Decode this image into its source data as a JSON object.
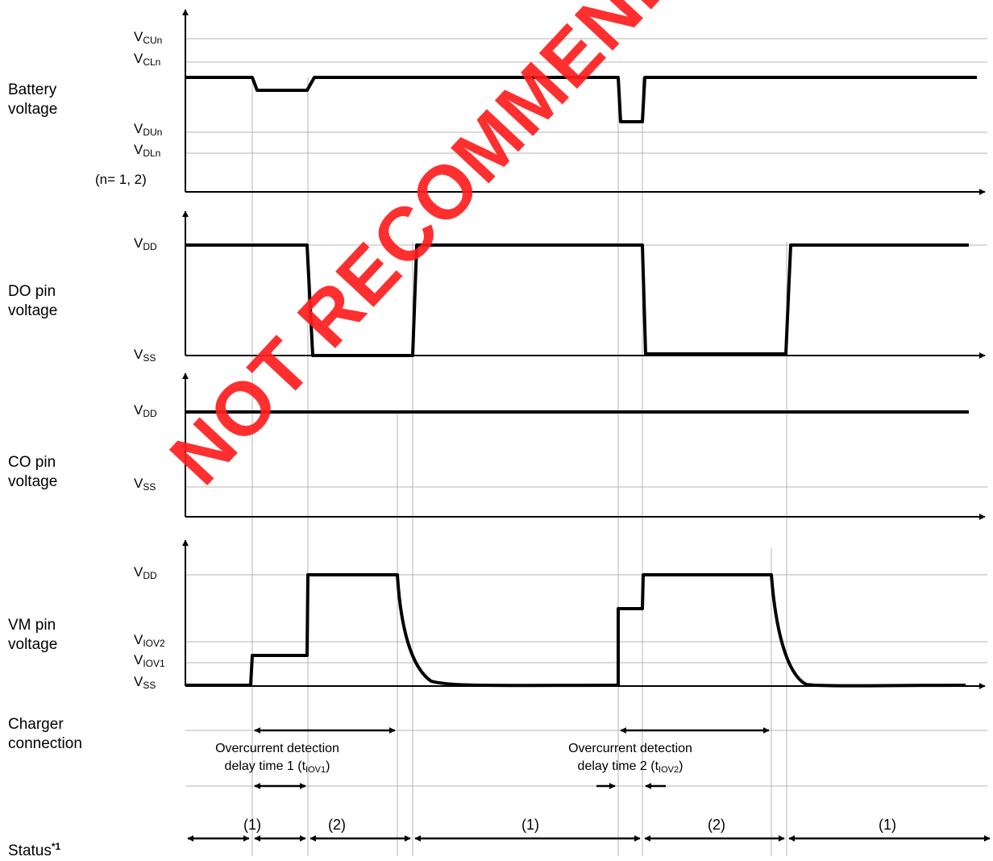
{
  "rows": {
    "battery": "Battery\nvoltage",
    "do": "DO pin\nvoltage",
    "co": "CO pin\nvoltage",
    "vm": "VM pin\nvoltage",
    "charger": "Charger\nconnection",
    "status": "Status",
    "status_sup": "*1"
  },
  "levels": {
    "vcun": {
      "base": "V",
      "sub": "CUn"
    },
    "vcln": {
      "base": "V",
      "sub": "CLn"
    },
    "vdun": {
      "base": "V",
      "sub": "DUn"
    },
    "vdln": {
      "base": "V",
      "sub": "DLn"
    },
    "n_note": "(n= 1, 2)",
    "do_vdd": {
      "base": "V",
      "sub": "DD"
    },
    "do_vss": {
      "base": "V",
      "sub": "SS"
    },
    "co_vdd": {
      "base": "V",
      "sub": "DD"
    },
    "co_vss": {
      "base": "V",
      "sub": "SS"
    },
    "vm_vdd": {
      "base": "V",
      "sub": "DD"
    },
    "vm_viov2": {
      "base": "V",
      "sub": "IOV2"
    },
    "vm_viov1": {
      "base": "V",
      "sub": "IOV1"
    },
    "vm_vss": {
      "base": "V",
      "sub": "SS"
    }
  },
  "annotations": {
    "oc1_line1": "Overcurrent detection",
    "oc1_line2": "delay time 1 (t",
    "oc1_sub": "IOV1",
    "oc1_end": ")",
    "oc2_line1": "Overcurrent detection",
    "oc2_line2": "delay time 2 (t",
    "oc2_sub": "IOV2",
    "oc2_end": ")"
  },
  "status_labels": [
    "(1)",
    "(2)",
    "(1)",
    "(2)",
    "(1)"
  ],
  "watermark": "NOT RECOMMENDED FOR NEW DESIGN",
  "colors": {
    "watermark": "#ff1e1e",
    "trace": "#000000",
    "grid": "#b4b4b4"
  }
}
